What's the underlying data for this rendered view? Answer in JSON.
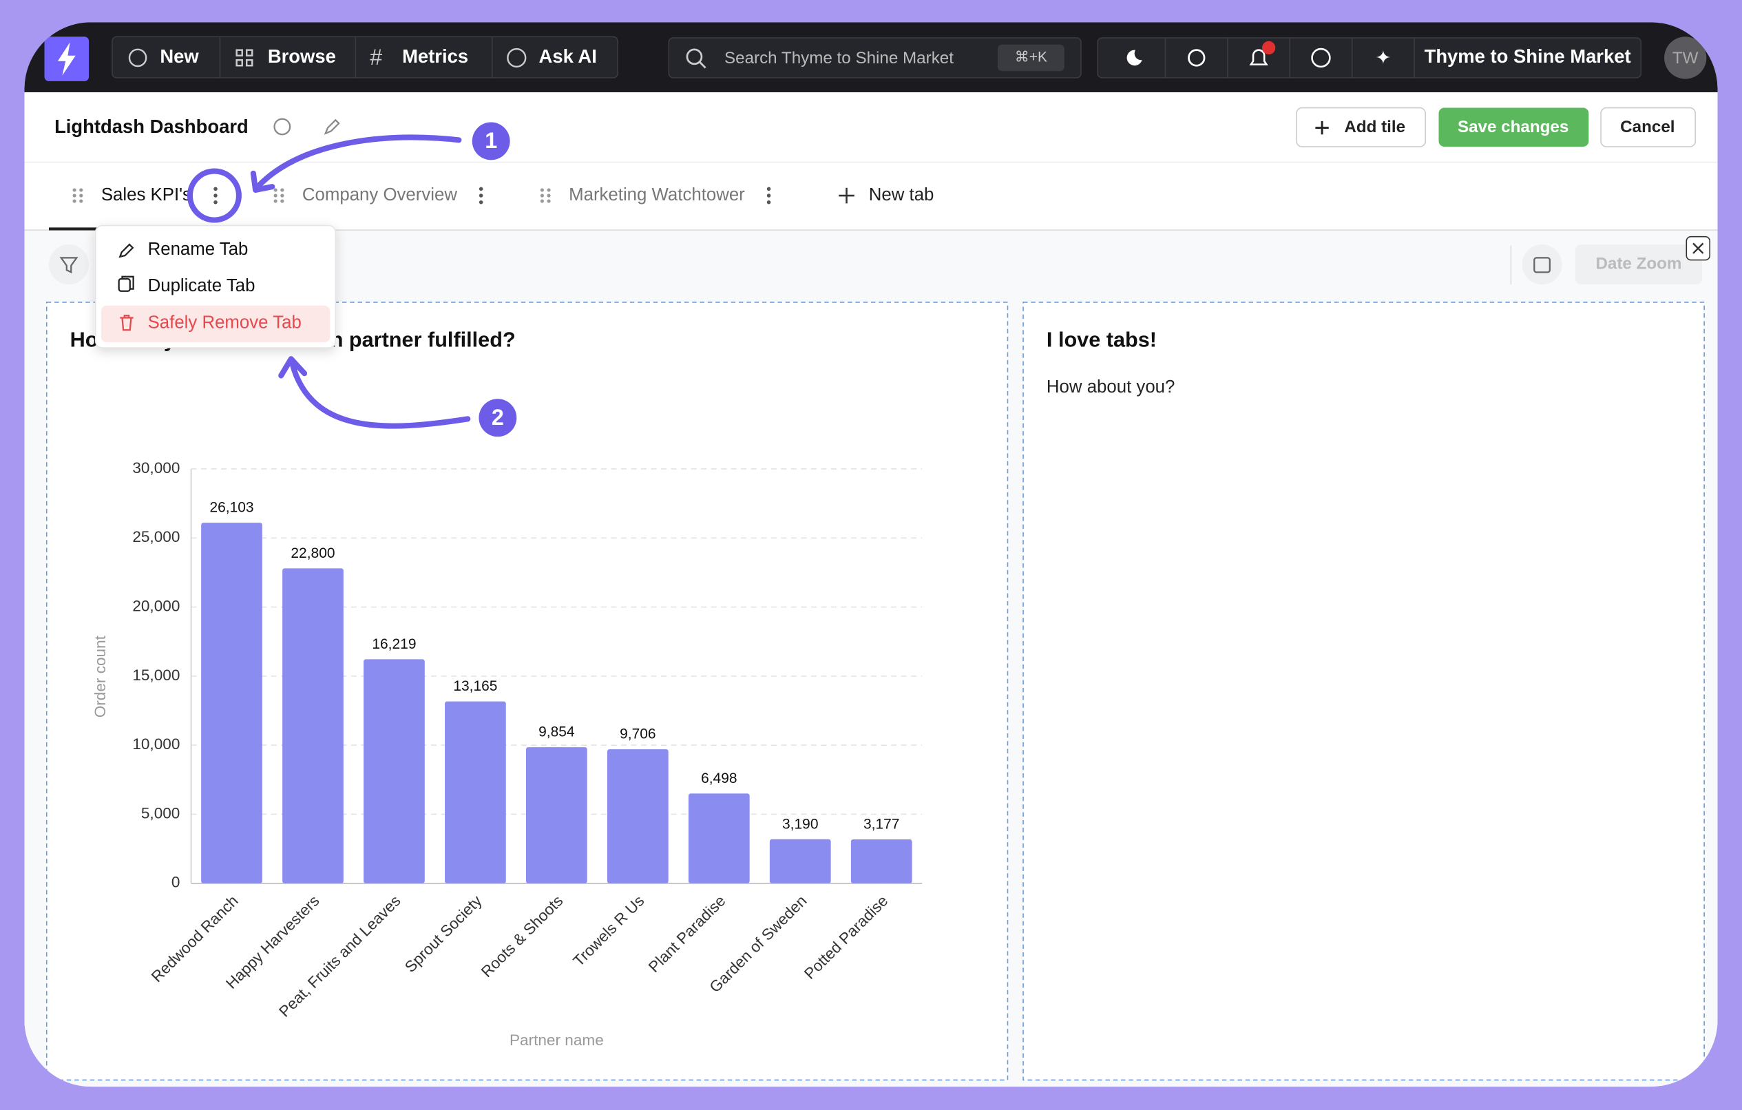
{
  "nav": {
    "new": "New",
    "browse": "Browse",
    "metrics": "Metrics",
    "ask_ai": "Ask AI",
    "search": "Search Thyme to Shine Market",
    "shortcut": "⌘+K",
    "org": "Thyme to Shine Market",
    "avatar": "TW"
  },
  "header": {
    "title": "Lightdash Dashboard",
    "add_tile": "Add tile",
    "save": "Save changes",
    "cancel": "Cancel"
  },
  "tabs": [
    "Sales KPI's",
    "Company Overview",
    "Marketing Watchtower"
  ],
  "new_tab": "New tab",
  "menu": [
    "Rename Tab",
    "Duplicate Tab",
    "Safely Remove Tab"
  ],
  "annotations": [
    "1",
    "2"
  ],
  "date_zoom": "Date Zoom",
  "text_tile": {
    "title": "I love tabs!",
    "body": "How about you?"
  },
  "chart_data": {
    "type": "bar",
    "title": "How many orders has each partner fulfilled?",
    "categories": [
      "Redwood Ranch",
      "Happy Harvesters",
      "Peat, Fruits and Leaves",
      "Sprout Society",
      "Roots & Shoots",
      "Trowels R Us",
      "Plant Paradise",
      "Garden of Sweden",
      "Potted Paradise"
    ],
    "values": [
      26103,
      22800,
      16219,
      13165,
      9854,
      9706,
      6498,
      3190,
      3177
    ],
    "value_labels": [
      "26,103",
      "22,800",
      "16,219",
      "13,165",
      "9,854",
      "9,706",
      "6,498",
      "3,190",
      "3,177"
    ],
    "color": "#8b8cf0",
    "x_label": "Partner name",
    "y_label": "Order count",
    "ylim": [
      0,
      30000
    ],
    "yticks": [
      0,
      {
        "value": 5000,
        "label": "5,000"
      },
      {
        "value": 10000,
        "label": "10,000"
      },
      {
        "value": 15000,
        "label": "15,000"
      },
      {
        "value": 20000,
        "label": "20,000"
      },
      {
        "value": 25000,
        "label": "25,000"
      },
      {
        "value": 30000,
        "label": "30,000"
      }
    ],
    "grid": true
  }
}
